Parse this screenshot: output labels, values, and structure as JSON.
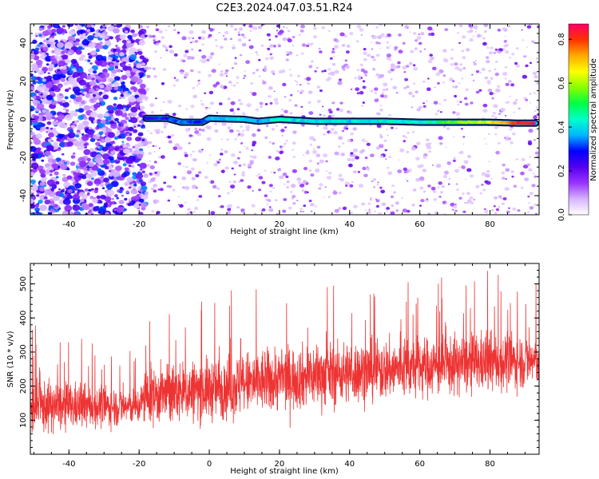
{
  "title": "C2E3.2024.047.03.51.R24",
  "chart_data": [
    {
      "type": "heatmap",
      "xlabel": "Height of straight line (km)",
      "ylabel": "Frequency (Hz)",
      "xlim": [
        -51,
        94
      ],
      "ylim": [
        -50,
        50
      ],
      "x_ticks": [
        -40,
        -20,
        0,
        20,
        40,
        60,
        80
      ],
      "y_ticks": [
        -40,
        -20,
        0,
        20,
        40
      ],
      "colorbar": {
        "label": "Normalized spectral amplitude",
        "range": [
          0.0,
          0.87
        ],
        "ticks": [
          0.0,
          0.2,
          0.4,
          0.6,
          0.8
        ],
        "colormap": [
          "#ffffff",
          "#d6b3ff",
          "#9933ff",
          "#5500ee",
          "#0000ff",
          "#00b7ff",
          "#00ffcc",
          "#00ff44",
          "#88ff00",
          "#ffff00",
          "#ffaa00",
          "#ff3300",
          "#ff0066"
        ]
      },
      "signal_trace": [
        {
          "x": -18,
          "freq": 0.5,
          "amp": 0.25
        },
        {
          "x": -12,
          "freq": 0.5,
          "amp": 0.3
        },
        {
          "x": -8,
          "freq": -1.5,
          "amp": 0.35
        },
        {
          "x": -2,
          "freq": -1.5,
          "amp": 0.3
        },
        {
          "x": 0,
          "freq": 0.5,
          "amp": 0.35
        },
        {
          "x": 10,
          "freq": 0.0,
          "amp": 0.4
        },
        {
          "x": 14,
          "freq": -1.0,
          "amp": 0.35
        },
        {
          "x": 20,
          "freq": 0.0,
          "amp": 0.45
        },
        {
          "x": 30,
          "freq": -1.0,
          "amp": 0.4
        },
        {
          "x": 40,
          "freq": -1.0,
          "amp": 0.4
        },
        {
          "x": 50,
          "freq": -1.0,
          "amp": 0.4
        },
        {
          "x": 60,
          "freq": -1.5,
          "amp": 0.45
        },
        {
          "x": 70,
          "freq": -1.5,
          "amp": 0.55
        },
        {
          "x": 80,
          "freq": -1.5,
          "amp": 0.65
        },
        {
          "x": 88,
          "freq": -2.0,
          "amp": 0.8
        },
        {
          "x": 93,
          "freq": -2.0,
          "amp": 0.85
        }
      ],
      "noise_density": [
        {
          "x_range": [
            -51,
            -18
          ],
          "level": "high"
        },
        {
          "x_range": [
            -18,
            94
          ],
          "level": "low"
        }
      ]
    },
    {
      "type": "line",
      "xlabel": "Height of straight line (km)",
      "ylabel": "SNR (10 * v/v)",
      "xlim": [
        -51,
        94
      ],
      "ylim": [
        0,
        560
      ],
      "x_ticks": [
        -40,
        -20,
        0,
        20,
        40,
        60,
        80
      ],
      "y_ticks": [
        100,
        200,
        300,
        400,
        500
      ],
      "series": [
        {
          "color": "#ee3333",
          "envelope": [
            {
              "x": -51,
              "min": 10,
              "max": 390
            },
            {
              "x": -40,
              "min": 10,
              "max": 350
            },
            {
              "x": -30,
              "min": 10,
              "max": 320
            },
            {
              "x": -20,
              "min": 10,
              "max": 300
            },
            {
              "x": -18,
              "min": 15,
              "max": 430
            },
            {
              "x": -10,
              "min": 20,
              "max": 450
            },
            {
              "x": 0,
              "min": 30,
              "max": 470
            },
            {
              "x": 10,
              "min": 40,
              "max": 500
            },
            {
              "x": 20,
              "min": 40,
              "max": 510
            },
            {
              "x": 40,
              "min": 50,
              "max": 520
            },
            {
              "x": 60,
              "min": 50,
              "max": 520
            },
            {
              "x": 80,
              "min": 60,
              "max": 540
            },
            {
              "x": 94,
              "min": 60,
              "max": 500
            }
          ],
          "mean": [
            {
              "x": -51,
              "y": 140
            },
            {
              "x": -20,
              "y": 140
            },
            {
              "x": -18,
              "y": 170
            },
            {
              "x": 0,
              "y": 190
            },
            {
              "x": 20,
              "y": 220
            },
            {
              "x": 40,
              "y": 240
            },
            {
              "x": 60,
              "y": 255
            },
            {
              "x": 80,
              "y": 270
            },
            {
              "x": 94,
              "y": 275
            }
          ]
        }
      ]
    }
  ]
}
